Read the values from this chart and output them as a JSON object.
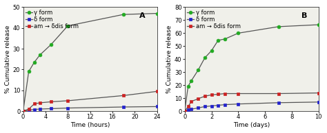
{
  "A": {
    "title": "A",
    "xlabel": "Time (hours)",
    "ylabel": "% Cumulative release",
    "xlim": [
      0,
      24
    ],
    "ylim": [
      0,
      50
    ],
    "yticks": [
      0,
      10,
      20,
      30,
      40,
      50
    ],
    "xticks": [
      0,
      4,
      8,
      12,
      16,
      20,
      24
    ],
    "gamma": {
      "x": [
        0,
        1,
        2,
        3,
        5,
        8,
        18,
        24
      ],
      "y": [
        0,
        19,
        23.5,
        27,
        32,
        41,
        46.5,
        47
      ]
    },
    "delta": {
      "x": [
        0,
        1,
        2,
        3,
        5,
        8,
        18,
        24
      ],
      "y": [
        0,
        0.5,
        0.8,
        1.0,
        1.2,
        1.5,
        2.0,
        2.2
      ]
    },
    "am": {
      "x": [
        0,
        1,
        2,
        3,
        5,
        8,
        18,
        24
      ],
      "y": [
        0,
        1.0,
        3.5,
        4.0,
        4.5,
        5.0,
        7.5,
        9.5
      ]
    }
  },
  "B": {
    "title": "B",
    "xlabel": "Time (days)",
    "ylabel": "% Cumulative release",
    "xlim": [
      0,
      10
    ],
    "ylim": [
      0,
      80
    ],
    "yticks": [
      0,
      10,
      20,
      30,
      40,
      50,
      60,
      70,
      80
    ],
    "xticks": [
      0,
      2,
      4,
      6,
      8,
      10
    ],
    "gamma": {
      "x": [
        0,
        0.25,
        0.5,
        1,
        1.5,
        2,
        2.5,
        3,
        4,
        7,
        10
      ],
      "y": [
        0,
        19,
        23.5,
        31.5,
        41,
        46.5,
        54.5,
        55.5,
        60,
        65,
        66.5
      ]
    },
    "delta": {
      "x": [
        0,
        0.25,
        0.5,
        1,
        1.5,
        2,
        2.5,
        3,
        4,
        7,
        10
      ],
      "y": [
        0,
        1.0,
        1.5,
        2.5,
        3.5,
        4.0,
        4.5,
        5.0,
        5.5,
        6.5,
        7.0
      ]
    },
    "am": {
      "x": [
        0,
        0.25,
        0.5,
        1,
        1.5,
        2,
        2.5,
        3,
        4,
        7,
        10
      ],
      "y": [
        0,
        3.5,
        7.5,
        9.5,
        11.5,
        12.5,
        13.0,
        13.5,
        13.5,
        13.5,
        14.0
      ]
    }
  },
  "legend": {
    "gamma_label": "γ form",
    "delta_label": "δ form",
    "am_label": "am → δdis form"
  },
  "gamma_color": "#22aa22",
  "delta_color": "#2222cc",
  "am_color": "#cc2222",
  "line_color": "#555555",
  "marker_size": 3.5,
  "linewidth": 0.9,
  "bg_color": "#ffffff",
  "panel_bg": "#f0f0ea",
  "title_fontsize": 8,
  "label_fontsize": 6.5,
  "tick_fontsize": 6,
  "legend_fontsize": 6
}
